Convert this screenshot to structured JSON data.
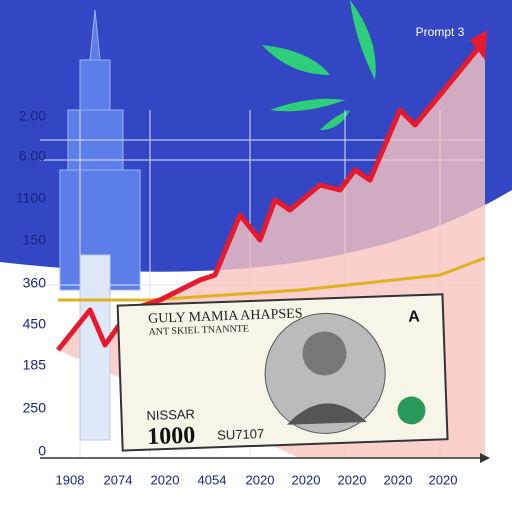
{
  "header": {
    "title": "Prompt 3"
  },
  "y_labels": [
    "2.00",
    "6.00",
    "1100",
    "150",
    "360",
    "450",
    "185",
    "250",
    "0"
  ],
  "x_labels": [
    "1908",
    "2074",
    "2020",
    "4054",
    "2020",
    "2020",
    "2020",
    "2020",
    "2020"
  ],
  "banknote": {
    "title": "GULY MAMIA AHAPSES",
    "subtitle": "ANT SKIEL TNANNTE",
    "name": "NISSAR",
    "denomination": "1000",
    "serial": "SU7107",
    "corner": "A"
  }
}
